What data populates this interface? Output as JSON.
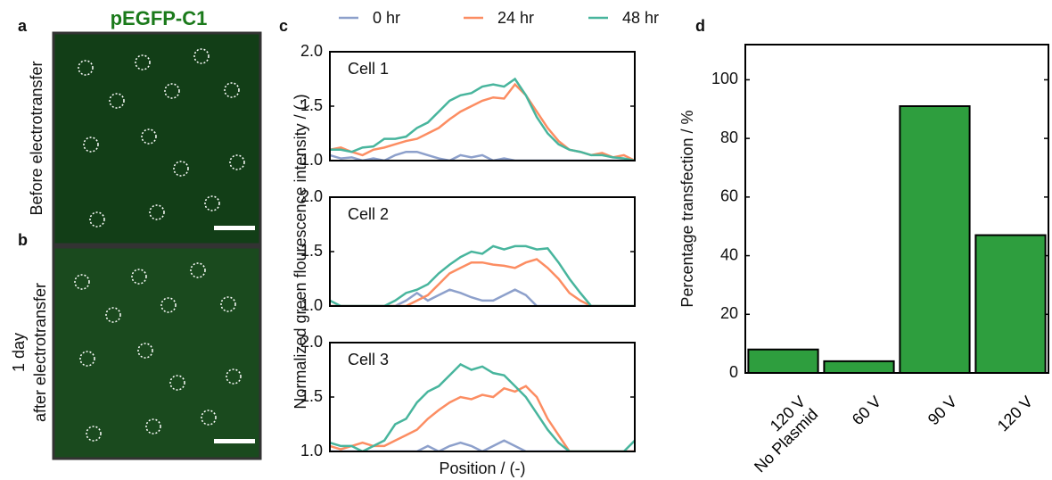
{
  "figure": {
    "panel_labels": [
      "a",
      "b",
      "c",
      "d"
    ],
    "image_title": "pEGFP-C1",
    "image_labels": [
      [
        "Before electrotransfer"
      ],
      [
        "1 day",
        "after electrotransfer"
      ]
    ]
  },
  "chart_data": [
    {
      "type": "line",
      "title": "Cell 1",
      "ylim": [
        1,
        2
      ],
      "yticks": [
        {
          "value": 1,
          "label": "1.0"
        },
        1.5,
        {
          "value": 2,
          "label": "2.0"
        }
      ],
      "series": [
        {
          "name": "0 hr",
          "color": "#8da0cb",
          "values": [
            1.05,
            1.02,
            1.03,
            1.0,
            1.02,
            1.0,
            1.05,
            1.08,
            1.08,
            1.05,
            1.02,
            1.0,
            1.05,
            1.03,
            1.05,
            1.0,
            1.02,
            1.0,
            1.0,
            1.0,
            1.0,
            1.0,
            1.0,
            1.0,
            1.0,
            1.0,
            1.0,
            1.0,
            1.0
          ]
        },
        {
          "name": "24 hr",
          "color": "#fc8d62",
          "values": [
            1.1,
            1.12,
            1.08,
            1.05,
            1.1,
            1.12,
            1.15,
            1.18,
            1.2,
            1.25,
            1.3,
            1.38,
            1.45,
            1.5,
            1.55,
            1.58,
            1.57,
            1.7,
            1.6,
            1.45,
            1.3,
            1.18,
            1.1,
            1.08,
            1.05,
            1.07,
            1.03,
            1.05,
            1.0
          ]
        },
        {
          "name": "48 hr",
          "color": "#48b59d",
          "values": [
            1.1,
            1.1,
            1.08,
            1.12,
            1.13,
            1.2,
            1.2,
            1.22,
            1.3,
            1.35,
            1.45,
            1.55,
            1.6,
            1.62,
            1.68,
            1.7,
            1.68,
            1.75,
            1.6,
            1.4,
            1.25,
            1.15,
            1.1,
            1.08,
            1.05,
            1.05,
            1.03,
            1.02,
            1.0
          ]
        }
      ]
    },
    {
      "type": "line",
      "title": "Cell 2",
      "ylabel": "Normalized green flourescence intensity / (-)",
      "ylim": [
        1,
        2
      ],
      "yticks": [
        {
          "value": 1,
          "label": "1.0"
        },
        1.5,
        {
          "value": 2,
          "label": "2.0"
        }
      ],
      "series": [
        {
          "color": "#8da0cb",
          "values": [
            1.0,
            1.0,
            1.0,
            1.0,
            1.0,
            1.0,
            1.0,
            1.05,
            1.12,
            1.05,
            1.1,
            1.15,
            1.12,
            1.08,
            1.05,
            1.05,
            1.1,
            1.15,
            1.1,
            1.0,
            1.0,
            1.0,
            1.0,
            1.0,
            1.0,
            1.0,
            1.0,
            1.0,
            1.0
          ]
        },
        {
          "color": "#fc8d62",
          "values": [
            1.0,
            1.0,
            1.0,
            1.0,
            1.0,
            1.0,
            1.0,
            1.0,
            1.05,
            1.1,
            1.2,
            1.3,
            1.35,
            1.4,
            1.4,
            1.38,
            1.37,
            1.35,
            1.4,
            1.43,
            1.35,
            1.25,
            1.12,
            1.05,
            1.0,
            1.0,
            1.0,
            1.0,
            1.0
          ]
        },
        {
          "color": "#48b59d",
          "values": [
            1.05,
            1.0,
            1.0,
            1.0,
            1.0,
            1.0,
            1.05,
            1.12,
            1.15,
            1.2,
            1.3,
            1.38,
            1.45,
            1.5,
            1.48,
            1.55,
            1.52,
            1.55,
            1.55,
            1.52,
            1.53,
            1.4,
            1.25,
            1.12,
            1.0,
            1.0,
            1.0,
            1.0,
            1.0
          ]
        }
      ]
    },
    {
      "type": "line",
      "title": "Cell 3",
      "xlabel": "Position / (-)",
      "ylim": [
        1,
        2
      ],
      "yticks": [
        {
          "value": 1,
          "label": "1.0"
        },
        1.5,
        {
          "value": 2,
          "label": "2.0"
        }
      ],
      "series": [
        {
          "color": "#8da0cb",
          "values": [
            1.0,
            1.0,
            1.0,
            1.0,
            1.0,
            1.0,
            1.0,
            1.0,
            1.0,
            1.05,
            1.0,
            1.05,
            1.08,
            1.05,
            1.0,
            1.05,
            1.1,
            1.05,
            1.0,
            1.0,
            1.0,
            1.0,
            1.0,
            1.0,
            1.0,
            1.0,
            1.0,
            1.0,
            1.0
          ]
        },
        {
          "color": "#fc8d62",
          "values": [
            1.05,
            1.02,
            1.05,
            1.08,
            1.05,
            1.05,
            1.1,
            1.15,
            1.2,
            1.3,
            1.38,
            1.45,
            1.5,
            1.48,
            1.52,
            1.5,
            1.58,
            1.55,
            1.6,
            1.5,
            1.3,
            1.15,
            1.0,
            1.0,
            1.0,
            1.0,
            1.0,
            1.0,
            1.0
          ]
        },
        {
          "color": "#48b59d",
          "values": [
            1.08,
            1.05,
            1.05,
            1.0,
            1.05,
            1.1,
            1.25,
            1.3,
            1.45,
            1.55,
            1.6,
            1.7,
            1.8,
            1.75,
            1.78,
            1.72,
            1.7,
            1.6,
            1.5,
            1.35,
            1.2,
            1.08,
            1.0,
            1.0,
            1.0,
            1.0,
            1.0,
            1.0,
            1.1
          ]
        }
      ]
    },
    {
      "type": "bar",
      "ylabel": "Percentage transfection / %",
      "categories": [
        "120 V\nNo Plasmid",
        "60 V",
        "90 V",
        "120 V"
      ],
      "values": [
        8,
        4,
        91,
        47
      ],
      "color": "#2e9e3e",
      "ylim": [
        0,
        112
      ],
      "yticks": [
        0,
        20,
        40,
        60,
        80,
        100
      ]
    }
  ]
}
